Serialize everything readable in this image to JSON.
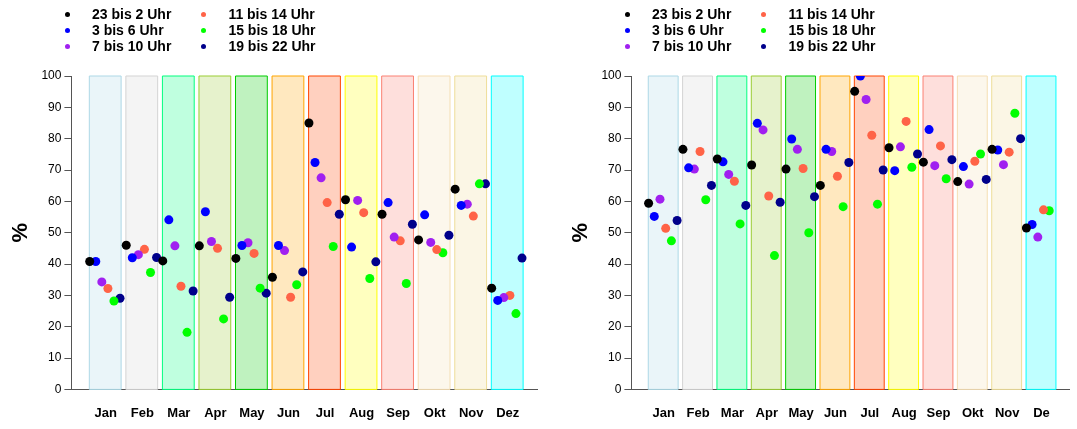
{
  "chart_data": [
    {
      "type": "scatter",
      "ylabel": "%",
      "legend": "top left",
      "marker": "circle",
      "grid": false,
      "ylim": [
        0,
        100
      ],
      "yticks": [
        0,
        10,
        20,
        30,
        40,
        50,
        60,
        70,
        80,
        90,
        100
      ],
      "categories": [
        "Jan",
        "Feb",
        "Mar",
        "Apr",
        "May",
        "Jun",
        "Jul",
        "Aug",
        "Sep",
        "Okt",
        "Nov",
        "Dez"
      ],
      "bands": [
        {
          "axis": "x",
          "from": "Jan",
          "to": "Jan",
          "color": "#add8e6"
        },
        {
          "axis": "x",
          "from": "Feb",
          "to": "Feb",
          "color": "#d3d3d3"
        },
        {
          "axis": "x",
          "from": "Mar",
          "to": "Mar",
          "color": "#00ff7f"
        },
        {
          "axis": "x",
          "from": "Apr",
          "to": "Apr",
          "color": "#9acd32"
        },
        {
          "axis": "x",
          "from": "May",
          "to": "May",
          "color": "#00cd00"
        },
        {
          "axis": "x",
          "from": "Jun",
          "to": "Jun",
          "color": "#ffa500"
        },
        {
          "axis": "x",
          "from": "Jul",
          "to": "Jul",
          "color": "#ff4500"
        },
        {
          "axis": "x",
          "from": "Aug",
          "to": "Aug",
          "color": "#ffff00"
        },
        {
          "axis": "x",
          "from": "Sep",
          "to": "Sep",
          "color": "#fa8072"
        },
        {
          "axis": "x",
          "from": "Okt",
          "to": "Okt",
          "color": "#f5deb3"
        },
        {
          "axis": "x",
          "from": "Nov",
          "to": "Nov",
          "color": "#eedd99"
        },
        {
          "axis": "x",
          "from": "Dez",
          "to": "Dez",
          "color": "#00ffff"
        }
      ],
      "series": [
        {
          "name": "23 bis 2 Uhr",
          "color": "#000000",
          "values": [
            40.8,
            46.0,
            41.0,
            45.8,
            41.8,
            35.8,
            85.0,
            60.5,
            55.9,
            47.7,
            63.9,
            32.3
          ]
        },
        {
          "name": "3 bis 6 Uhr",
          "color": "#0000ff",
          "values": [
            40.8,
            42.0,
            54.1,
            56.7,
            45.9,
            45.9,
            72.4,
            45.4,
            59.6,
            55.7,
            58.7,
            28.4
          ]
        },
        {
          "name": "7 bis 10 Uhr",
          "color": "#a020f0",
          "values": [
            34.3,
            43.0,
            45.8,
            47.2,
            46.8,
            44.3,
            67.5,
            60.3,
            48.6,
            46.9,
            59.1,
            29.3
          ]
        },
        {
          "name": "11 bis 14 Uhr",
          "color": "#ff6347",
          "values": [
            32.2,
            44.7,
            32.9,
            45.0,
            43.4,
            29.4,
            59.6,
            56.4,
            47.4,
            44.6,
            55.3,
            30.0
          ]
        },
        {
          "name": "15 bis 18 Uhr",
          "color": "#00ff00",
          "values": [
            28.2,
            37.3,
            18.2,
            22.5,
            32.3,
            33.4,
            45.6,
            35.4,
            33.8,
            43.6,
            65.6,
            24.2
          ]
        },
        {
          "name": "19 bis 22 Uhr",
          "color": "#00008b",
          "values": [
            29.1,
            42.1,
            31.4,
            29.4,
            30.7,
            37.5,
            55.9,
            40.7,
            52.7,
            49.2,
            65.6,
            41.9
          ]
        }
      ]
    },
    {
      "type": "scatter",
      "ylabel": "%",
      "legend": "top left",
      "marker": "circle",
      "grid": false,
      "ylim": [
        0,
        100
      ],
      "yticks": [
        0,
        10,
        20,
        30,
        40,
        50,
        60,
        70,
        80,
        90,
        100
      ],
      "categories": [
        "Jan",
        "Feb",
        "Mar",
        "Apr",
        "May",
        "Jun",
        "Jul",
        "Aug",
        "Sep",
        "Okt",
        "Nov",
        "De"
      ],
      "bands": [
        {
          "axis": "x",
          "from": "Jan",
          "to": "Jan",
          "color": "#add8e6"
        },
        {
          "axis": "x",
          "from": "Feb",
          "to": "Feb",
          "color": "#d3d3d3"
        },
        {
          "axis": "x",
          "from": "Mar",
          "to": "Mar",
          "color": "#00ff7f"
        },
        {
          "axis": "x",
          "from": "Apr",
          "to": "Apr",
          "color": "#9acd32"
        },
        {
          "axis": "x",
          "from": "May",
          "to": "May",
          "color": "#00cd00"
        },
        {
          "axis": "x",
          "from": "Jun",
          "to": "Jun",
          "color": "#ffa500"
        },
        {
          "axis": "x",
          "from": "Jul",
          "to": "Jul",
          "color": "#ff4500"
        },
        {
          "axis": "x",
          "from": "Aug",
          "to": "Aug",
          "color": "#ffff00"
        },
        {
          "axis": "x",
          "from": "Sep",
          "to": "Sep",
          "color": "#fa8072"
        },
        {
          "axis": "x",
          "from": "Okt",
          "to": "Okt",
          "color": "#f5deb3"
        },
        {
          "axis": "x",
          "from": "Nov",
          "to": "Nov",
          "color": "#eedd99"
        },
        {
          "axis": "x",
          "from": "De",
          "to": "De",
          "color": "#00ffff"
        }
      ],
      "series": [
        {
          "name": "23 bis 2 Uhr",
          "color": "#000000",
          "values": [
            59.4,
            76.6,
            73.5,
            71.6,
            70.3,
            65.1,
            95.1,
            77.1,
            72.5,
            66.3,
            76.6,
            51.5
          ]
        },
        {
          "name": "3 bis 6 Uhr",
          "color": "#0000ff",
          "values": [
            55.2,
            70.7,
            72.6,
            84.9,
            79.9,
            76.6,
            100,
            69.8,
            82.9,
            71.1,
            76.4,
            52.6
          ]
        },
        {
          "name": "7 bis 10 Uhr",
          "color": "#a020f0",
          "values": [
            60.7,
            70.3,
            68.6,
            82.8,
            76.6,
            75.9,
            92.5,
            77.4,
            71.4,
            65.5,
            71.7,
            48.6
          ]
        },
        {
          "name": "11 bis 14 Uhr",
          "color": "#ff6347",
          "values": [
            51.4,
            75.9,
            66.4,
            61.7,
            70.5,
            68.0,
            81.1,
            85.5,
            77.7,
            72.8,
            75.7,
            57.3
          ]
        },
        {
          "name": "15 bis 18 Uhr",
          "color": "#00ff00",
          "values": [
            47.4,
            60.5,
            52.8,
            42.7,
            50.0,
            58.3,
            59.1,
            70.9,
            67.2,
            75.1,
            88.1,
            57.0
          ]
        },
        {
          "name": "19 bis 22 Uhr",
          "color": "#00008b",
          "values": [
            53.9,
            65.1,
            58.7,
            59.7,
            61.5,
            72.4,
            70.0,
            75.1,
            73.3,
            67.0,
            80.0,
            null
          ]
        }
      ]
    }
  ]
}
